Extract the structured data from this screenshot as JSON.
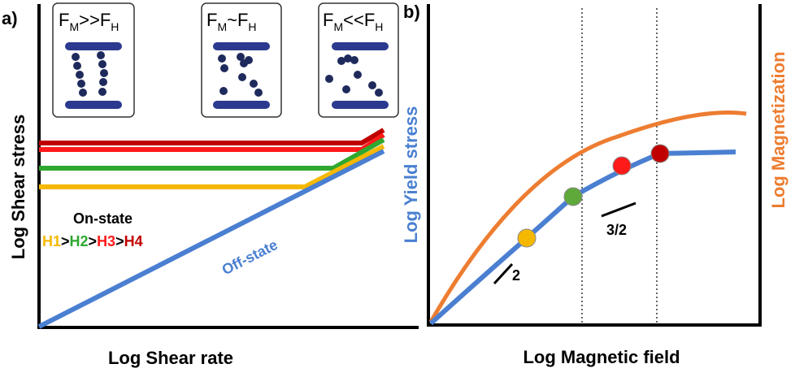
{
  "panel_a": {
    "label": "a)",
    "y_axis": "Log Shear stress",
    "x_axis": "Log Shear rate",
    "insets": [
      {
        "parts": [
          "F",
          "M",
          ">>F",
          "H"
        ]
      },
      {
        "parts": [
          "F",
          "M",
          "~F",
          "H"
        ]
      },
      {
        "parts": [
          "F",
          "M",
          "<<F",
          "H"
        ]
      }
    ],
    "on_state": "On-state",
    "fields": [
      "H1",
      ">",
      "H2",
      ">",
      "H3",
      ">",
      "H4"
    ],
    "off_state": "Off-state"
  },
  "panel_b": {
    "label": "b)",
    "y_axis": "Log Yield stress",
    "y2_axis": "Log Magnetization",
    "x_axis": "Log Magnetic field",
    "slopes": [
      "2",
      "3/2"
    ]
  }
}
